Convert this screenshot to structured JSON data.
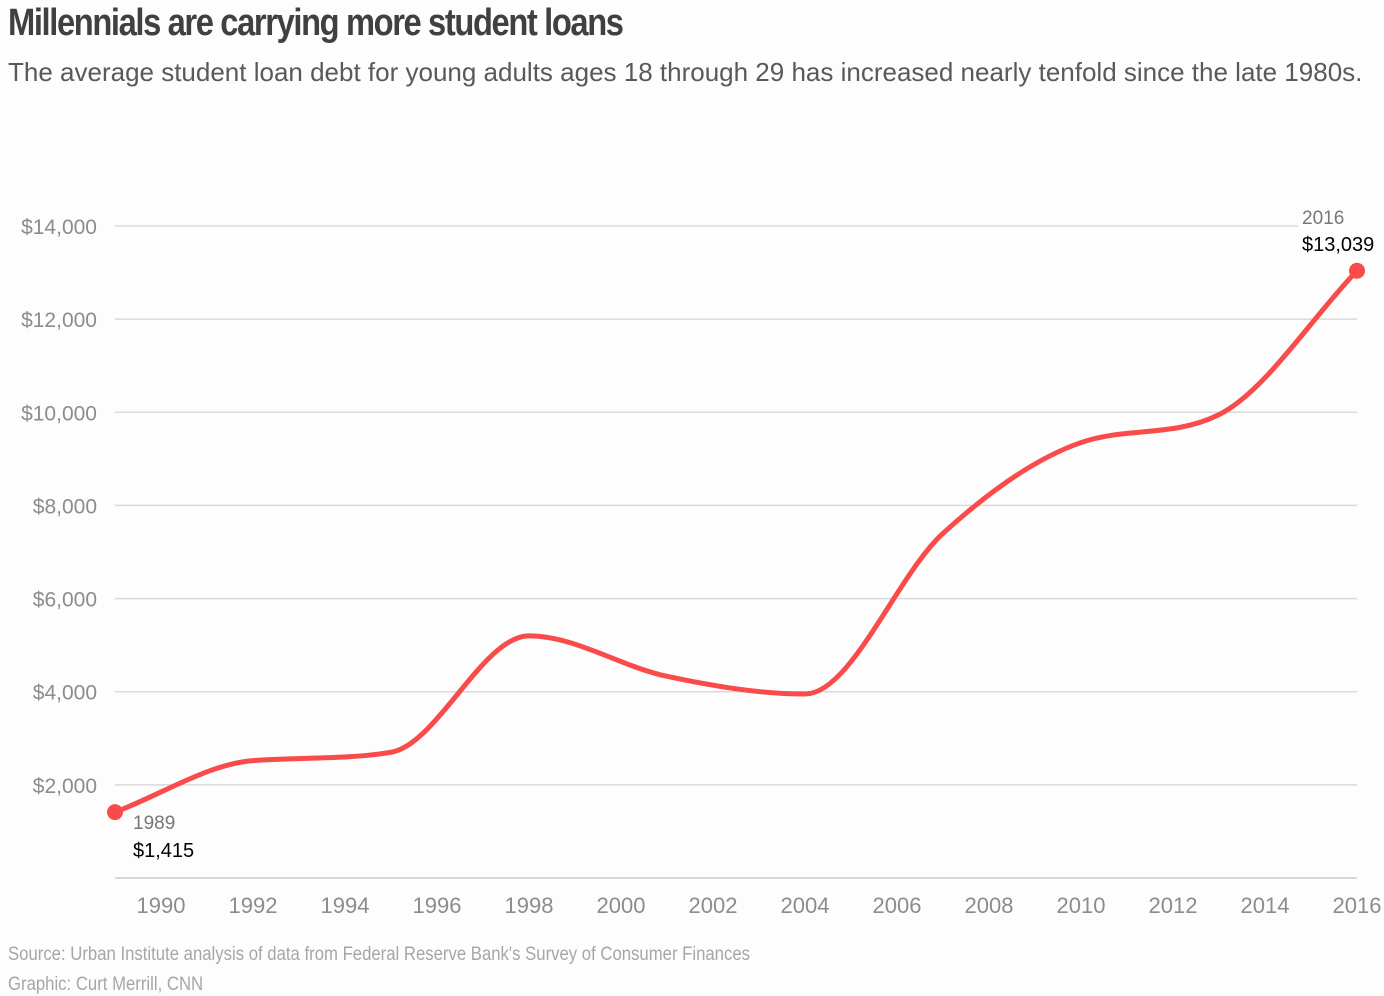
{
  "header": {
    "title": "Millennials are carrying more student loans",
    "subtitle": "The average student loan debt for young adults ages 18 through 29 has increased nearly tenfold since the late 1980s."
  },
  "footer": {
    "source": "Source: Urban Institute analysis of data from Federal Reserve Bank's Survey of Consumer Finances",
    "credit": "Graphic: Curt Merrill, CNN"
  },
  "annotations": {
    "start": {
      "year": "1989",
      "value": "$1,415"
    },
    "end": {
      "year": "2016",
      "value": "$13,039"
    }
  },
  "colors": {
    "line": "#fa4b4b",
    "grid": "#d9d9d9",
    "tick_text": "#8c8c8c"
  },
  "chart_data": {
    "type": "line",
    "title": "Millennials are carrying more student loans",
    "subtitle": "The average student loan debt for young adults ages 18 through 29 has increased nearly tenfold since the late 1980s.",
    "xlabel": "",
    "ylabel": "",
    "x": [
      1989,
      1992,
      1995,
      1998,
      2001,
      2004,
      2007,
      2010,
      2013,
      2016
    ],
    "series": [
      {
        "name": "Average student loan debt, ages 18-29",
        "values": [
          1415,
          2520,
          2700,
          5200,
          4330,
          3950,
          7400,
          9350,
          9950,
          13039
        ]
      }
    ],
    "xlim": [
      1989,
      2016
    ],
    "ylim": [
      0,
      14000
    ],
    "x_ticks": [
      "1990",
      "1992",
      "1994",
      "1996",
      "1998",
      "2000",
      "2002",
      "2004",
      "2006",
      "2008",
      "2010",
      "2012",
      "2014",
      "2016"
    ],
    "y_ticks": [
      "$2,000",
      "$4,000",
      "$6,000",
      "$8,000",
      "$10,000",
      "$12,000",
      "$14,000"
    ],
    "grid": true,
    "legend": "none",
    "annotations": [
      {
        "x": 1989,
        "label_year": "1989",
        "label_value": "$1,415"
      },
      {
        "x": 2016,
        "label_year": "2016",
        "label_value": "$13,039"
      }
    ]
  }
}
